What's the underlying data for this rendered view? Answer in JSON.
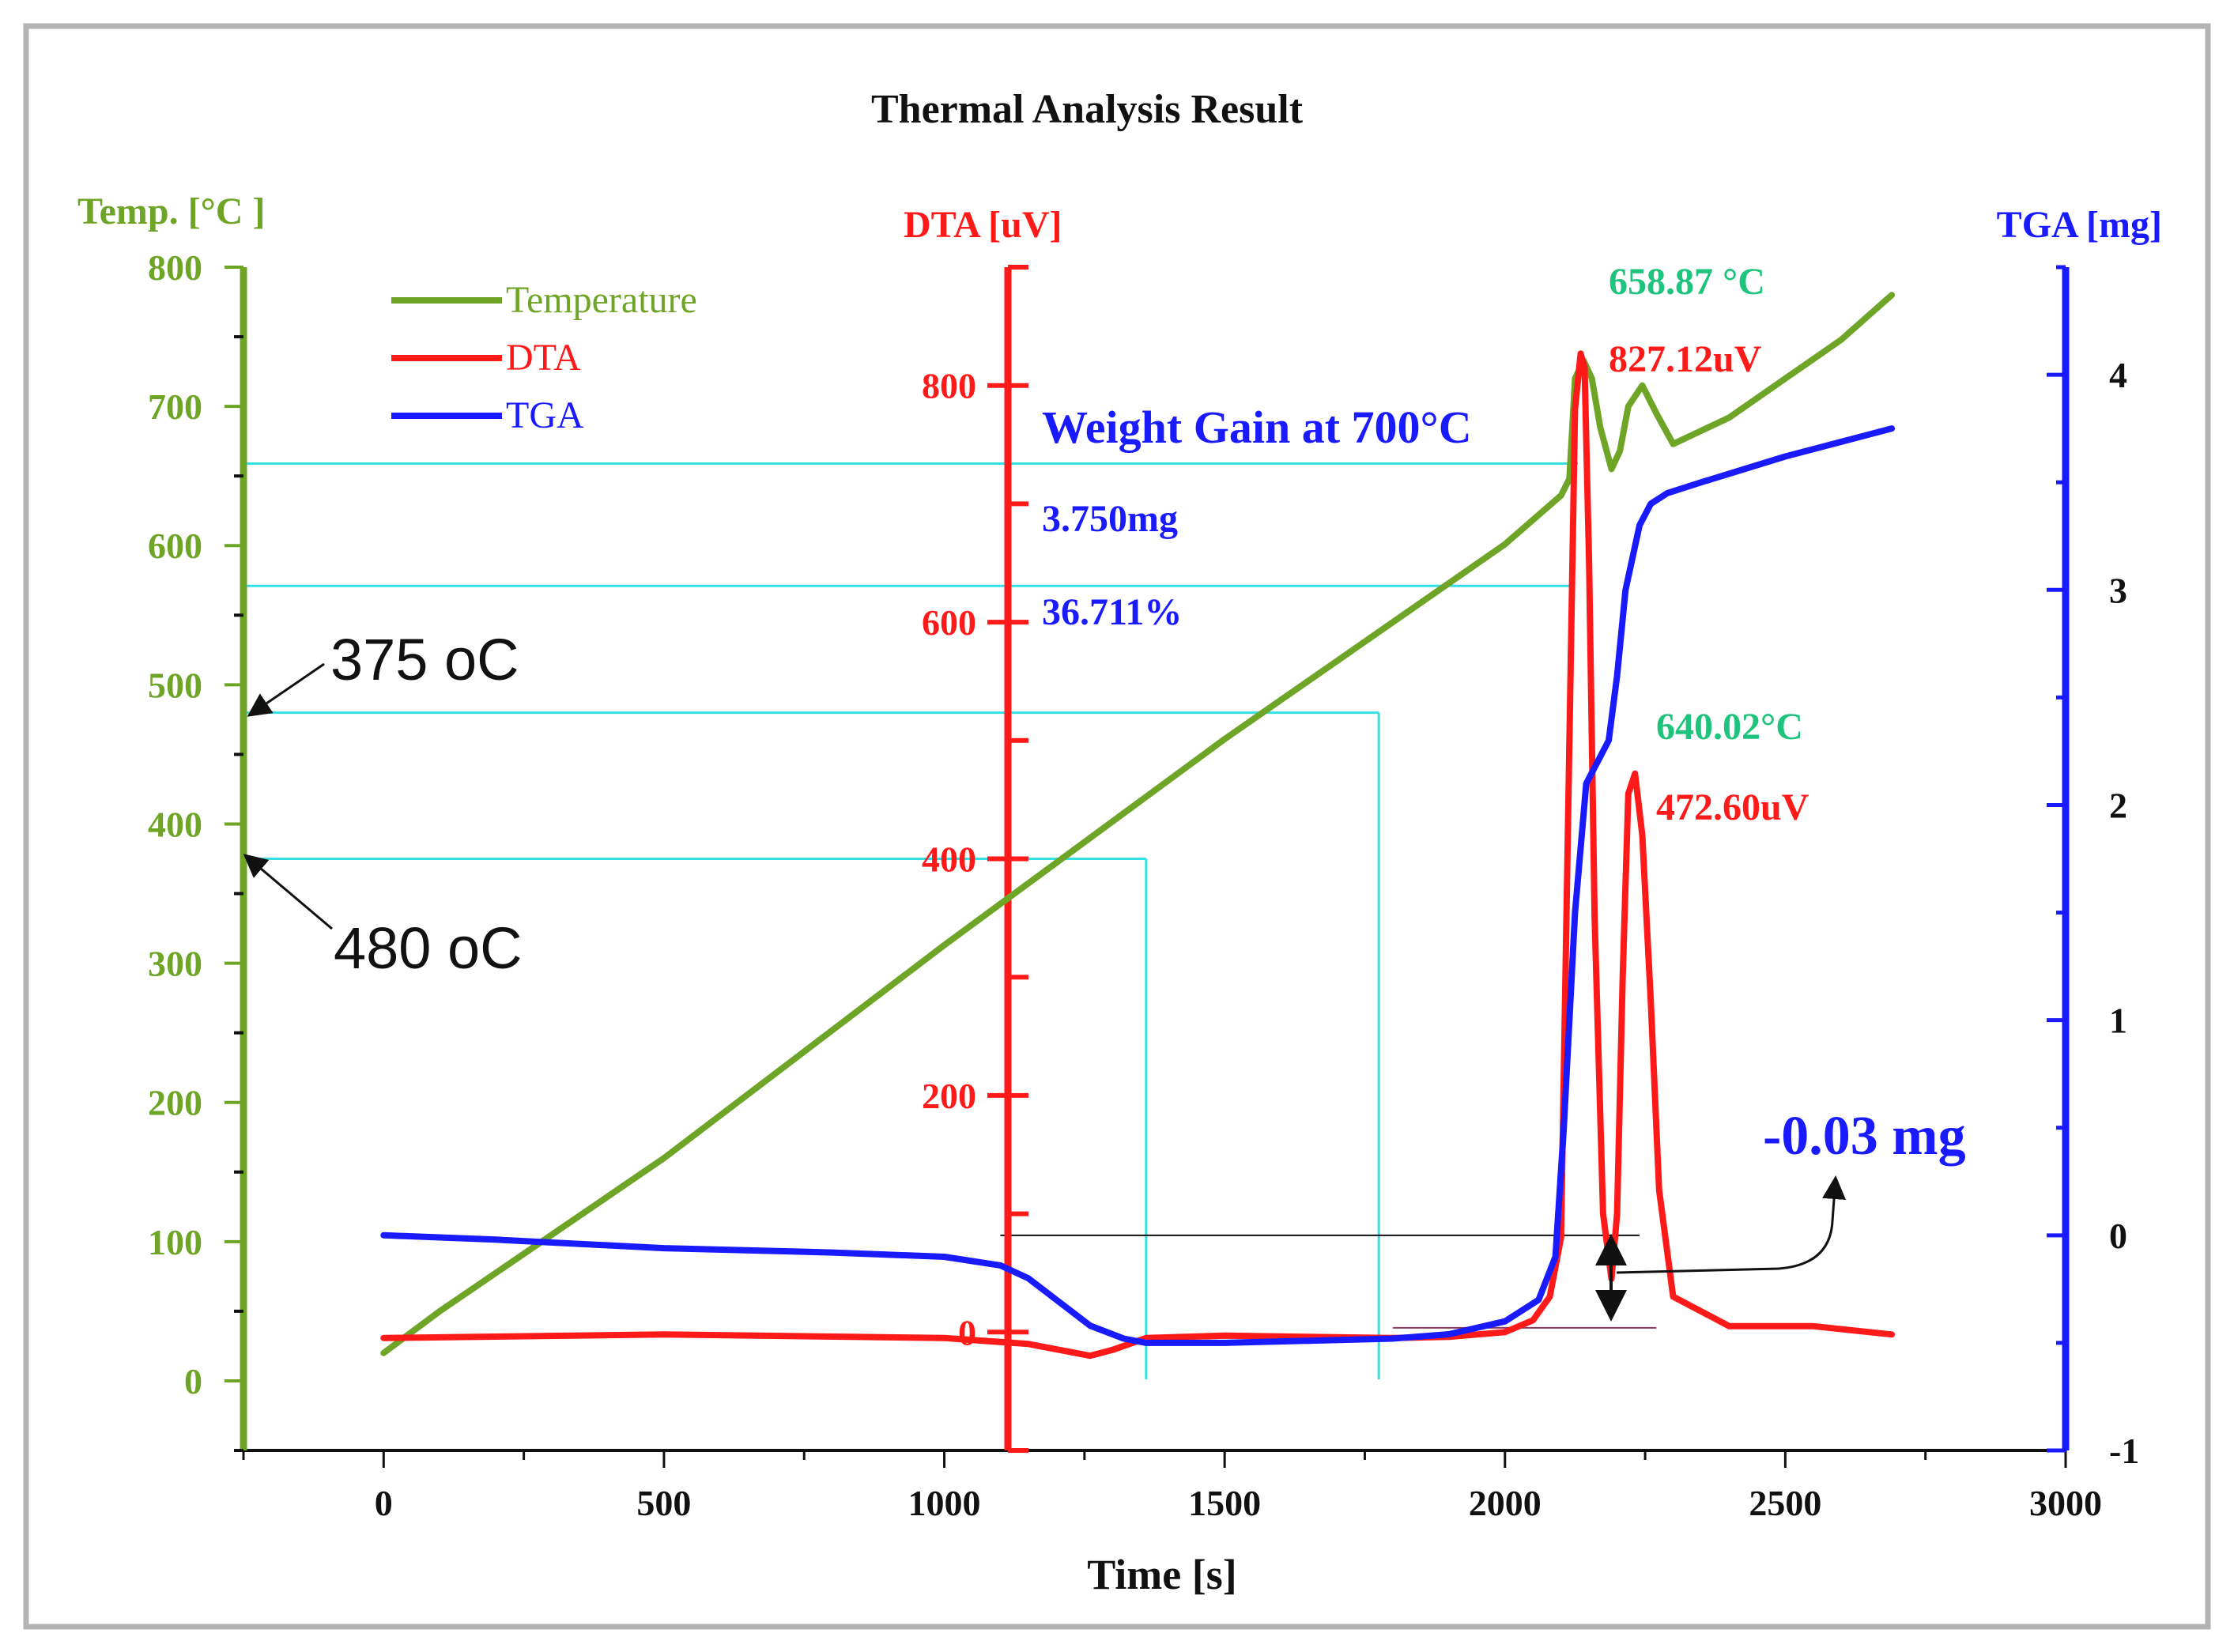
{
  "chart_data": {
    "type": "line",
    "title": "Thermal Analysis Result",
    "xlabel": "Time [s]",
    "xlim": [
      -250,
      3000
    ],
    "x_ticks": [
      0,
      500,
      1000,
      1500,
      2000,
      2500,
      3000
    ],
    "axes": {
      "temperature": {
        "label": "Temp. [°C ]",
        "ylim": [
          -50,
          800
        ],
        "ticks": [
          0,
          100,
          200,
          300,
          400,
          500,
          600,
          700,
          800
        ],
        "color": "#6fa527"
      },
      "dta": {
        "label": "DTA [uV]",
        "ylim": [
          -100,
          900
        ],
        "ticks": [
          0,
          200,
          400,
          600,
          800
        ],
        "color": "#ff1a1a"
      },
      "tga": {
        "label": "TGA [mg]",
        "ylim": [
          -1,
          4.5
        ],
        "ticks": [
          -1,
          0,
          1,
          2,
          3,
          4
        ],
        "color": "#1a1aff"
      }
    },
    "legend": {
      "placement": "top-left",
      "entries": [
        "Temperature",
        "DTA",
        "TGA"
      ]
    },
    "series": [
      {
        "name": "Temperature",
        "axis": "temperature",
        "color": "#6fa527",
        "x": [
          0,
          100,
          500,
          1000,
          1500,
          2000,
          2100,
          2115,
          2125,
          2140,
          2155,
          2170,
          2190,
          2205,
          2220,
          2245,
          2270,
          2300,
          2400,
          2500,
          2600,
          2690
        ],
        "y": [
          20,
          50,
          160,
          313,
          461,
          601,
          636,
          648,
          720,
          733,
          720,
          685,
          655,
          668,
          700,
          715,
          695,
          673,
          692,
          720,
          748,
          780
        ]
      },
      {
        "name": "DTA",
        "axis": "dta",
        "color": "#ff1a1a",
        "x": [
          0,
          500,
          1000,
          1150,
          1260,
          1300,
          1360,
          1500,
          1800,
          1900,
          2000,
          2050,
          2080,
          2100,
          2115,
          2125,
          2135,
          2142,
          2150,
          2160,
          2175,
          2190,
          2200,
          2210,
          2220,
          2232,
          2245,
          2260,
          2275,
          2300,
          2400,
          2550,
          2690
        ],
        "y": [
          -5,
          -2,
          -5,
          -10,
          -20,
          -15,
          -5,
          -3,
          -5,
          -4,
          0,
          10,
          30,
          80,
          500,
          780,
          827,
          815,
          650,
          350,
          100,
          45,
          100,
          300,
          455,
          472,
          420,
          280,
          120,
          30,
          5,
          5,
          -2
        ]
      },
      {
        "name": "TGA",
        "axis": "tga",
        "color": "#1a1aff",
        "x": [
          0,
          200,
          500,
          800,
          1000,
          1100,
          1150,
          1200,
          1260,
          1320,
          1360,
          1500,
          1800,
          1900,
          2000,
          2060,
          2090,
          2105,
          2125,
          2145,
          2165,
          2185,
          2200,
          2215,
          2240,
          2260,
          2290,
          2350,
          2500,
          2690
        ],
        "y": [
          0,
          -0.02,
          -0.06,
          -0.08,
          -0.1,
          -0.14,
          -0.2,
          -0.3,
          -0.42,
          -0.48,
          -0.5,
          -0.5,
          -0.48,
          -0.46,
          -0.4,
          -0.3,
          -0.1,
          0.5,
          1.5,
          2.1,
          2.2,
          2.3,
          2.6,
          3.0,
          3.3,
          3.4,
          3.45,
          3.5,
          3.62,
          3.75
        ]
      }
    ],
    "annotations": {
      "peak1_temp": "658.87 °C",
      "peak1_dta": "827.12uV",
      "peak2_temp": "640.02°C",
      "peak2_dta": "472.60uV",
      "weight_gain_title": "Weight Gain at 700°C",
      "weight_gain_mg": "3.750mg",
      "weight_gain_pct": "36.711%",
      "loss_label": "-0.03 mg",
      "temp_label_375": "375 oC",
      "temp_label_480": "480 oC"
    },
    "colors": {
      "annotation_green": "#1fc47c",
      "guide_cyan": "#33e0e6",
      "border": "#b3b3b3"
    }
  }
}
